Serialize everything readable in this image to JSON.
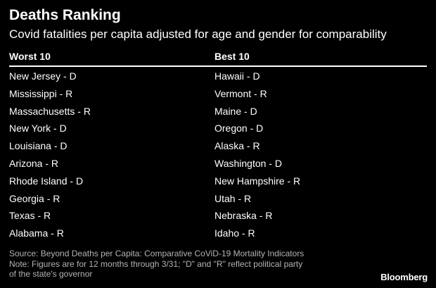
{
  "title": "Deaths Ranking",
  "subtitle": "Covid fatalities per capita adjusted for age and gender for comparability",
  "columns": {
    "worst": {
      "header": "Worst 10",
      "items": [
        "New Jersey - D",
        "Mississippi - R",
        "Massachusetts - R",
        "New York - D",
        "Louisiana - D",
        "Arizona - R",
        "Rhode Island - D",
        "Georgia - R",
        "Texas - R",
        "Alabama - R"
      ]
    },
    "best": {
      "header": "Best 10",
      "items": [
        "Hawaii - D",
        "Vermont - R",
        "Maine - D",
        "Oregon - D",
        "Alaska - R",
        "Washington - D",
        "New Hampshire - R",
        "Utah - R",
        "Nebraska - R",
        "Idaho - R"
      ]
    }
  },
  "footnote": {
    "source": "Source: Beyond Deaths per Capita: Comparative CoViD-19 Mortality Indicators",
    "note_line1": "Note: Figures are for 12 months through 3/31; \"D\" and \"R\" reflect political party",
    "note_line2": "of the state's governor"
  },
  "brand": "Bloomberg",
  "colors": {
    "background": "#000000",
    "text": "#ffffff",
    "footnote": "#b3b3b3"
  }
}
